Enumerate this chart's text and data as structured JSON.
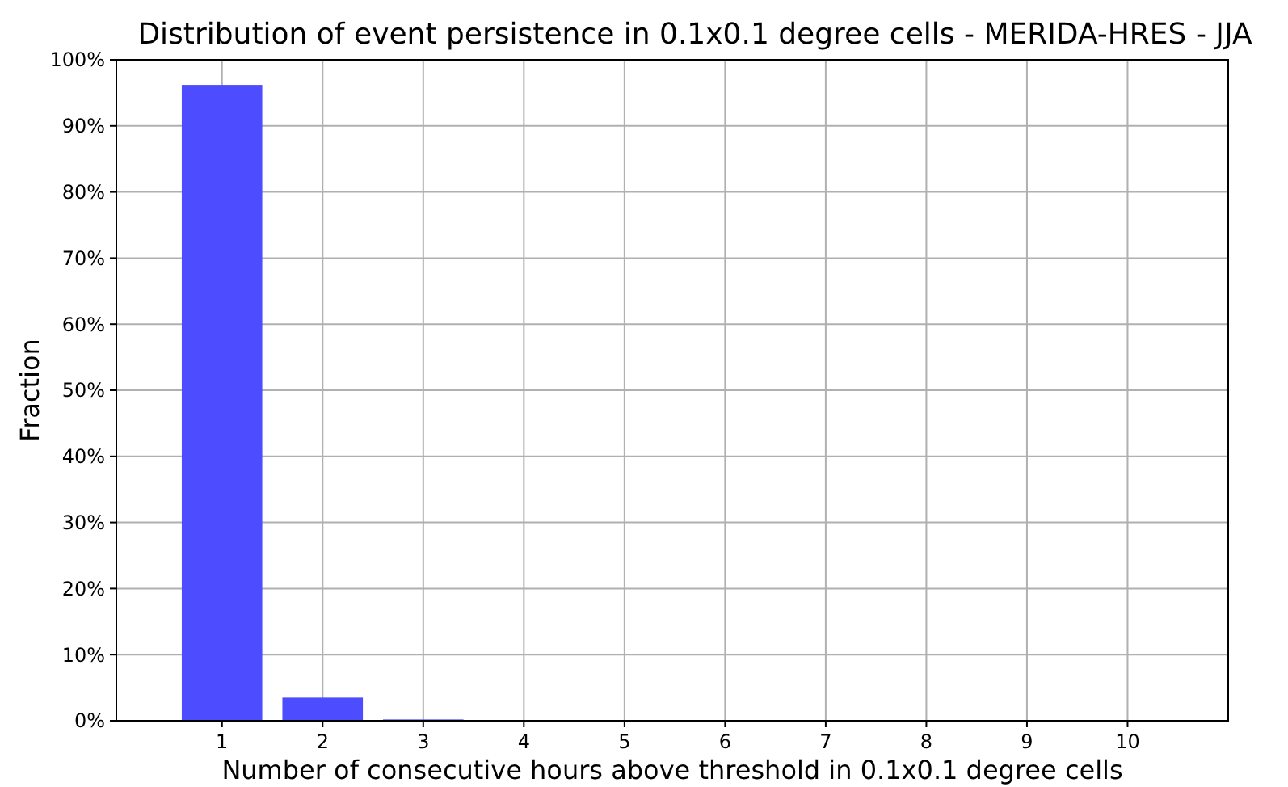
{
  "chart_data": {
    "type": "bar",
    "title": "Distribution of event persistence in 0.1x0.1 degree cells - MERIDA-HRES - JJA",
    "xlabel": "Number of consecutive hours above threshold in 0.1x0.1 degree cells",
    "ylabel": "Fraction",
    "x": [
      1,
      2,
      3,
      4,
      5,
      6,
      7,
      8,
      9,
      10
    ],
    "values": [
      96.2,
      3.5,
      0.2,
      0,
      0,
      0,
      0,
      0,
      0,
      0
    ],
    "color": "#4d4dff",
    "xlim": [
      -0.05,
      11
    ],
    "xticks": [
      1,
      2,
      3,
      4,
      5,
      6,
      7,
      8,
      9,
      10
    ],
    "ylim": [
      0,
      100
    ],
    "yticks": [
      {
        "value": 0,
        "label": "0%"
      },
      {
        "value": 10,
        "label": "10%"
      },
      {
        "value": 20,
        "label": "20%"
      },
      {
        "value": 30,
        "label": "30%"
      },
      {
        "value": 40,
        "label": "40%"
      },
      {
        "value": 50,
        "label": "50%"
      },
      {
        "value": 60,
        "label": "60%"
      },
      {
        "value": 70,
        "label": "70%"
      },
      {
        "value": 80,
        "label": "80%"
      },
      {
        "value": 90,
        "label": "90%"
      },
      {
        "value": 100,
        "label": "100%"
      }
    ],
    "grid": true
  }
}
